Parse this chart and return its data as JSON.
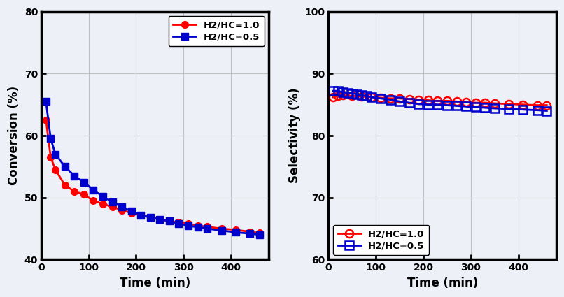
{
  "conv_time_r10": [
    10,
    20,
    30,
    50,
    70,
    90,
    110,
    130,
    150,
    170,
    190,
    210,
    230,
    250,
    270,
    290,
    310,
    330,
    350,
    380,
    410,
    440,
    460
  ],
  "conv_r10": [
    62.5,
    56.5,
    54.5,
    52.0,
    51.0,
    50.5,
    49.5,
    49.0,
    48.5,
    48.0,
    47.5,
    47.2,
    46.8,
    46.5,
    46.2,
    46.0,
    45.8,
    45.5,
    45.3,
    45.0,
    44.8,
    44.5,
    44.3
  ],
  "conv_time_r05": [
    10,
    20,
    30,
    50,
    70,
    90,
    110,
    130,
    150,
    170,
    190,
    210,
    230,
    250,
    270,
    290,
    310,
    330,
    350,
    380,
    410,
    440,
    460
  ],
  "conv_r05": [
    65.5,
    59.5,
    57.0,
    55.0,
    53.5,
    52.5,
    51.2,
    50.2,
    49.3,
    48.5,
    47.8,
    47.2,
    46.8,
    46.5,
    46.2,
    45.8,
    45.5,
    45.2,
    45.0,
    44.7,
    44.4,
    44.2,
    44.0
  ],
  "sel_time_r10": [
    10,
    20,
    30,
    50,
    70,
    90,
    110,
    130,
    150,
    170,
    190,
    210,
    230,
    250,
    270,
    290,
    310,
    330,
    350,
    380,
    410,
    440,
    460
  ],
  "sel_r10": [
    86.2,
    86.4,
    86.5,
    86.4,
    86.3,
    86.2,
    86.1,
    86.0,
    86.0,
    85.9,
    85.8,
    85.7,
    85.6,
    85.6,
    85.5,
    85.4,
    85.3,
    85.3,
    85.2,
    85.1,
    85.0,
    84.9,
    84.9
  ],
  "sel_time_r05": [
    10,
    20,
    30,
    40,
    50,
    60,
    70,
    80,
    90,
    110,
    130,
    150,
    170,
    190,
    210,
    230,
    250,
    270,
    290,
    310,
    330,
    350,
    380,
    410,
    440,
    460
  ],
  "sel_r05": [
    87.2,
    87.2,
    87.0,
    86.9,
    86.8,
    86.7,
    86.5,
    86.4,
    86.2,
    86.0,
    85.8,
    85.5,
    85.3,
    85.1,
    85.0,
    85.0,
    84.9,
    84.8,
    84.7,
    84.6,
    84.5,
    84.4,
    84.3,
    84.2,
    84.1,
    84.0
  ],
  "color_r10": "#FF0000",
  "color_r05": "#0000CC",
  "xlabel": "Time (min)",
  "ylabel_conv": "Conversion (%)",
  "ylabel_sel": "Selectivity (%)",
  "legend_r10": "H2/HC=1.0",
  "legend_r05": "H2/HC=0.5",
  "conv_xlim": [
    0,
    480
  ],
  "conv_ylim": [
    40,
    80
  ],
  "sel_xlim": [
    0,
    480
  ],
  "sel_ylim": [
    60,
    100
  ],
  "xticks": [
    0,
    100,
    200,
    300,
    400
  ],
  "conv_yticks": [
    40,
    50,
    60,
    70,
    80
  ],
  "sel_yticks": [
    60,
    70,
    80,
    90,
    100
  ],
  "grid_color": "#C0C0C0",
  "bg_color": "#EEF0F8"
}
